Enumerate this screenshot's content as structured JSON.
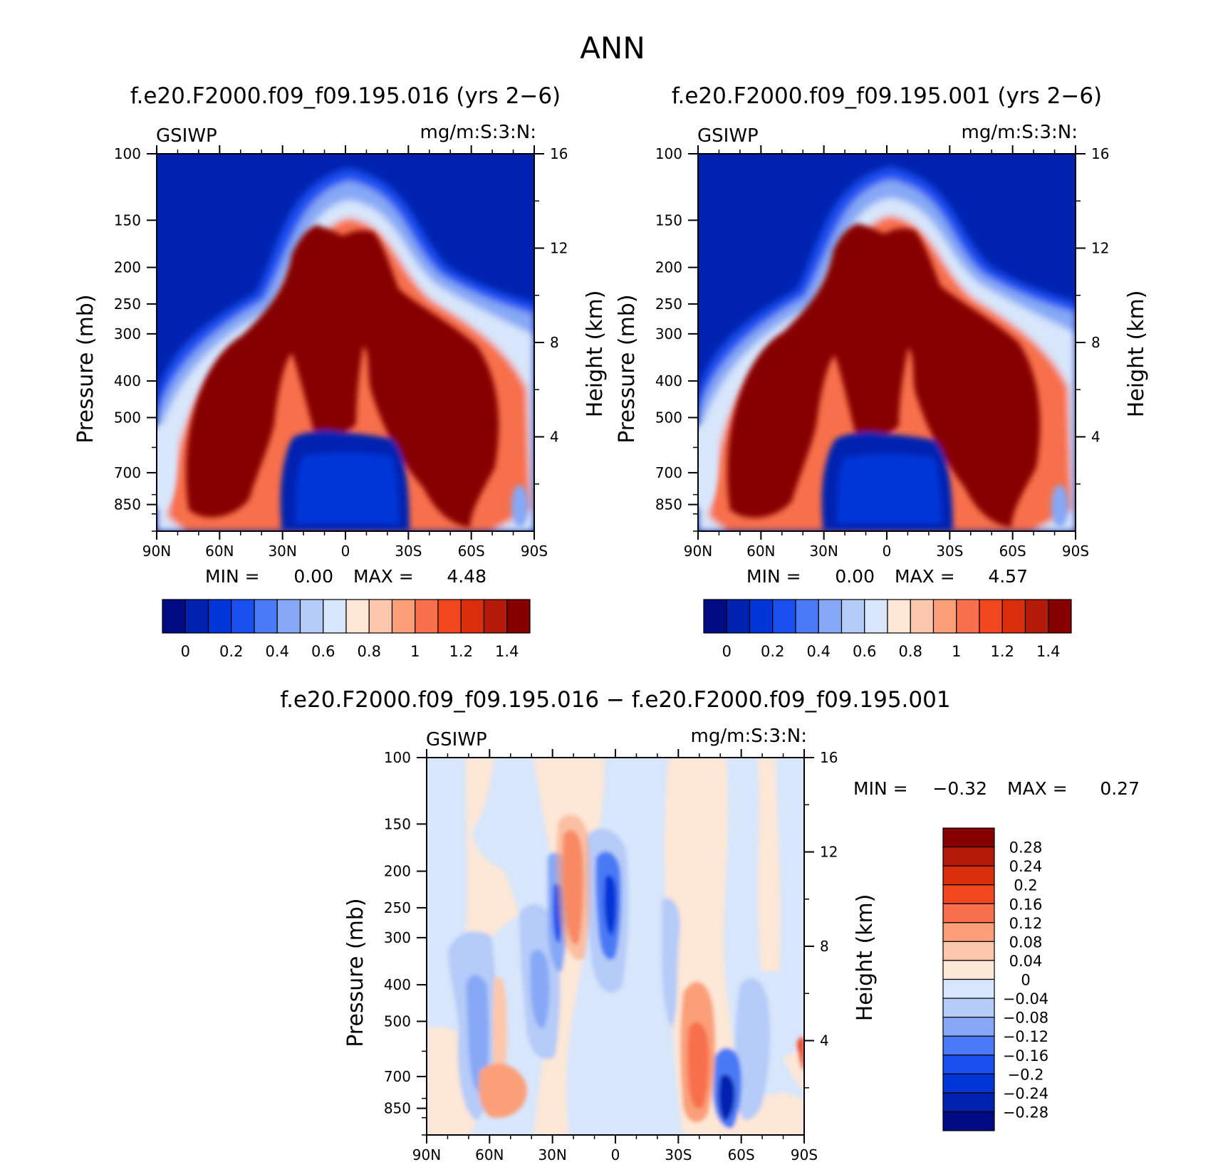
{
  "figure_title": "ANN",
  "chart_data": [
    {
      "type": "heatmap",
      "title": "f.e20.F2000.f09_f09.195.016 (yrs 2−6)",
      "variable": "GSIWP",
      "units": "mg/m:S:3:N:",
      "ylabel": "Pressure (mb)",
      "y2label": "Height (km)",
      "x_ticks": [
        "90N",
        "60N",
        "30N",
        "0",
        "30S",
        "60S",
        "90S"
      ],
      "y_ticks": [
        100,
        150,
        200,
        250,
        300,
        400,
        500,
        700,
        850
      ],
      "y2_ticks": [
        16,
        12,
        8,
        4
      ],
      "xlim": [
        90,
        -90
      ],
      "ylim": [
        100,
        1000
      ],
      "min_label": "MIN =",
      "min_value": "0.00",
      "max_label": "MAX =",
      "max_value": "4.48",
      "levels": [
        0,
        0.1,
        0.2,
        0.3,
        0.4,
        0.5,
        0.6,
        0.7,
        0.8,
        0.9,
        1.0,
        1.1,
        1.2,
        1.3,
        1.4
      ],
      "colorbar_labels": [
        "0",
        "0.2",
        "0.4",
        "0.6",
        "0.8",
        "1",
        "1.2",
        "1.4"
      ]
    },
    {
      "type": "heatmap",
      "title": "f.e20.F2000.f09_f09.195.001 (yrs 2−6)",
      "variable": "GSIWP",
      "units": "mg/m:S:3:N:",
      "ylabel": "Pressure (mb)",
      "y2label": "Height (km)",
      "x_ticks": [
        "90N",
        "60N",
        "30N",
        "0",
        "30S",
        "60S",
        "90S"
      ],
      "y_ticks": [
        100,
        150,
        200,
        250,
        300,
        400,
        500,
        700,
        850
      ],
      "y2_ticks": [
        16,
        12,
        8,
        4
      ],
      "xlim": [
        90,
        -90
      ],
      "ylim": [
        100,
        1000
      ],
      "min_label": "MIN =",
      "min_value": "0.00",
      "max_label": "MAX =",
      "max_value": "4.57",
      "levels": [
        0,
        0.1,
        0.2,
        0.3,
        0.4,
        0.5,
        0.6,
        0.7,
        0.8,
        0.9,
        1.0,
        1.1,
        1.2,
        1.3,
        1.4
      ],
      "colorbar_labels": [
        "0",
        "0.2",
        "0.4",
        "0.6",
        "0.8",
        "1",
        "1.2",
        "1.4"
      ]
    },
    {
      "type": "heatmap",
      "title": "f.e20.F2000.f09_f09.195.016 − f.e20.F2000.f09_f09.195.001",
      "variable": "GSIWP",
      "units": "mg/m:S:3:N:",
      "ylabel": "Pressure (mb)",
      "y2label": "Height (km)",
      "x_ticks": [
        "90N",
        "60N",
        "30N",
        "0",
        "30S",
        "60S",
        "90S"
      ],
      "y_ticks": [
        100,
        150,
        200,
        250,
        300,
        400,
        500,
        700,
        850
      ],
      "y2_ticks": [
        16,
        12,
        8,
        4
      ],
      "xlim": [
        90,
        -90
      ],
      "ylim": [
        100,
        1000
      ],
      "min_label": "MIN =",
      "min_value": "−0.32",
      "max_label": "MAX =",
      "max_value": "0.27",
      "levels": [
        -0.28,
        -0.24,
        -0.2,
        -0.16,
        -0.12,
        -0.08,
        -0.04,
        0,
        0.04,
        0.08,
        0.12,
        0.16,
        0.2,
        0.24,
        0.28
      ],
      "colorbar_labels": [
        "0.28",
        "0.24",
        "0.2",
        "0.16",
        "0.12",
        "0.08",
        "0.04",
        "0",
        "−0.04",
        "−0.08",
        "−0.12",
        "−0.16",
        "−0.2",
        "−0.24",
        "−0.28"
      ]
    }
  ],
  "colors": {
    "palette": [
      "#000a82",
      "#0022b0",
      "#0035d8",
      "#1a4ff0",
      "#4a7af5",
      "#86a8f6",
      "#b5cbf8",
      "#d8e6fb",
      "#fde7d6",
      "#fcc7aa",
      "#fa9f78",
      "#f7704b",
      "#f0471f",
      "#d92e0c",
      "#b31b08",
      "#860000"
    ]
  }
}
